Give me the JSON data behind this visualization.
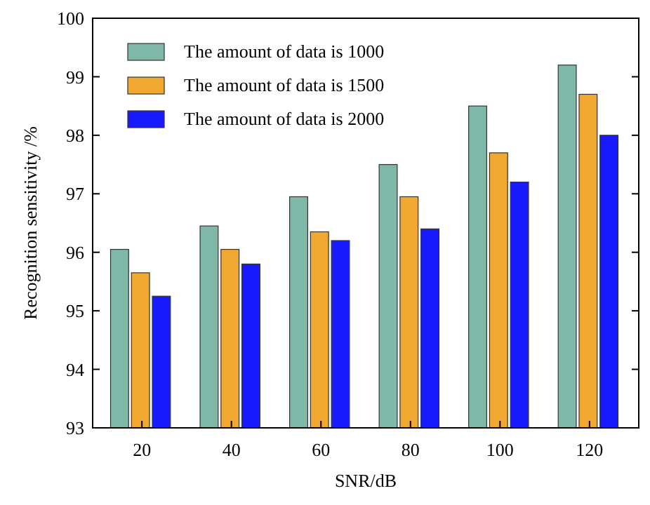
{
  "chart_data": {
    "type": "bar",
    "xlabel": "SNR/dB",
    "ylabel": "Recognition sensitivity /%",
    "categories": [
      "20",
      "40",
      "60",
      "80",
      "100",
      "120"
    ],
    "series": [
      {
        "name": "The amount of data is 1000",
        "color": "#7fb8a8",
        "values": [
          96.05,
          96.45,
          96.95,
          97.5,
          98.5,
          99.2
        ]
      },
      {
        "name": "The amount of data is 1500",
        "color": "#f0a830",
        "values": [
          95.65,
          96.05,
          96.35,
          96.95,
          97.7,
          98.7
        ]
      },
      {
        "name": "The amount of data is 2000",
        "color": "#1a1aff",
        "values": [
          95.25,
          95.8,
          96.2,
          96.4,
          97.2,
          98.0
        ]
      }
    ],
    "ylim": [
      93,
      100
    ],
    "yticks": [
      93,
      94,
      95,
      96,
      97,
      98,
      99,
      100
    ],
    "grid": false,
    "legend": "top left"
  }
}
